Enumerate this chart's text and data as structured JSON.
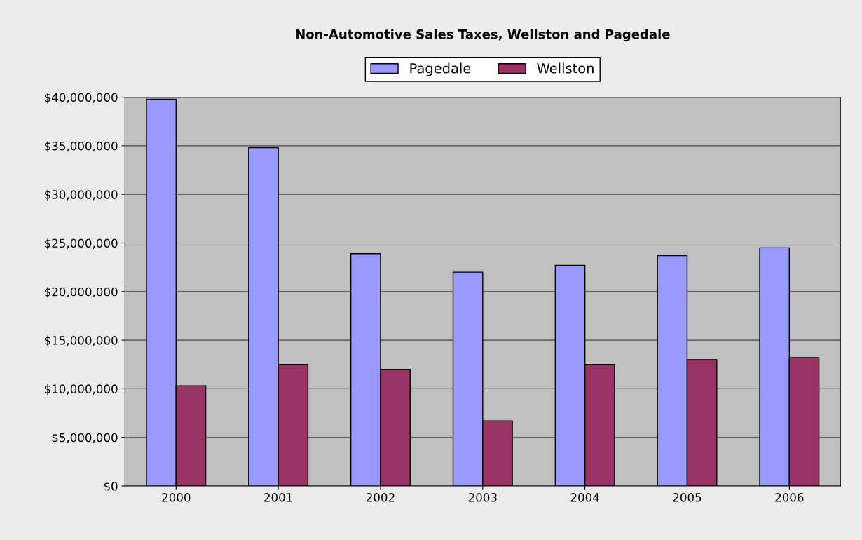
{
  "chart_data": {
    "type": "bar",
    "title": "Non-Automotive Sales Taxes, Wellston and Pagedale",
    "categories": [
      "2000",
      "2001",
      "2002",
      "2003",
      "2004",
      "2005",
      "2006"
    ],
    "series": [
      {
        "name": "Pagedale",
        "color": "#9999ff",
        "values": [
          39800000,
          34800000,
          23900000,
          22000000,
          22700000,
          23700000,
          24500000
        ]
      },
      {
        "name": "Wellston",
        "color": "#993366",
        "values": [
          10300000,
          12500000,
          12000000,
          6700000,
          12500000,
          13000000,
          13200000
        ]
      }
    ],
    "ylim": [
      0,
      40000000
    ],
    "yticks": [
      {
        "value": 0,
        "label": "$0"
      },
      {
        "value": 5000000,
        "label": "$5,000,000"
      },
      {
        "value": 10000000,
        "label": "$10,000,000"
      },
      {
        "value": 15000000,
        "label": "$15,000,000"
      },
      {
        "value": 20000000,
        "label": "$20,000,000"
      },
      {
        "value": 25000000,
        "label": "$25,000,000"
      },
      {
        "value": 30000000,
        "label": "$30,000,000"
      },
      {
        "value": 35000000,
        "label": "$35,000,000"
      },
      {
        "value": 40000000,
        "label": "$40,000,000"
      }
    ],
    "grid": "y",
    "legend": "top"
  }
}
